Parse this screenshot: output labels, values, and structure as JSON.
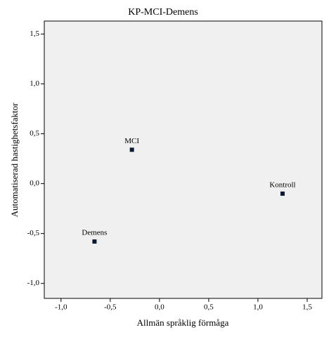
{
  "chart_data": {
    "type": "scatter",
    "title": "KP-MCI-Demens",
    "x_label": "Allmän språklig förmåga",
    "y_label": "Automatiserad hastighetsfaktor",
    "point_labels": [
      "MCI",
      "Demens",
      "Kontroll"
    ],
    "x": [
      -0.28,
      -0.66,
      1.25
    ],
    "values": [
      0.34,
      -0.58,
      -0.1
    ],
    "color": "#0a1a33",
    "xlim": [
      -1.17,
      1.65
    ],
    "ylim": [
      -1.15,
      1.63
    ],
    "xticks": [
      {
        "value": -1.0,
        "label": "-1,0"
      },
      {
        "value": -0.5,
        "label": "-0,5"
      },
      {
        "value": 0.0,
        "label": "0,0"
      },
      {
        "value": 0.5,
        "label": "0,5"
      },
      {
        "value": 1.0,
        "label": "1,0"
      },
      {
        "value": 1.5,
        "label": "1,5"
      }
    ],
    "yticks": [
      {
        "value": -1.0,
        "label": "-1,0"
      },
      {
        "value": -0.5,
        "label": "-0,5"
      },
      {
        "value": 0.0,
        "label": "0,0"
      },
      {
        "value": 0.5,
        "label": "0,5"
      },
      {
        "value": 1.0,
        "label": "1,0"
      },
      {
        "value": 1.5,
        "label": "1,5"
      }
    ],
    "grid": false
  }
}
